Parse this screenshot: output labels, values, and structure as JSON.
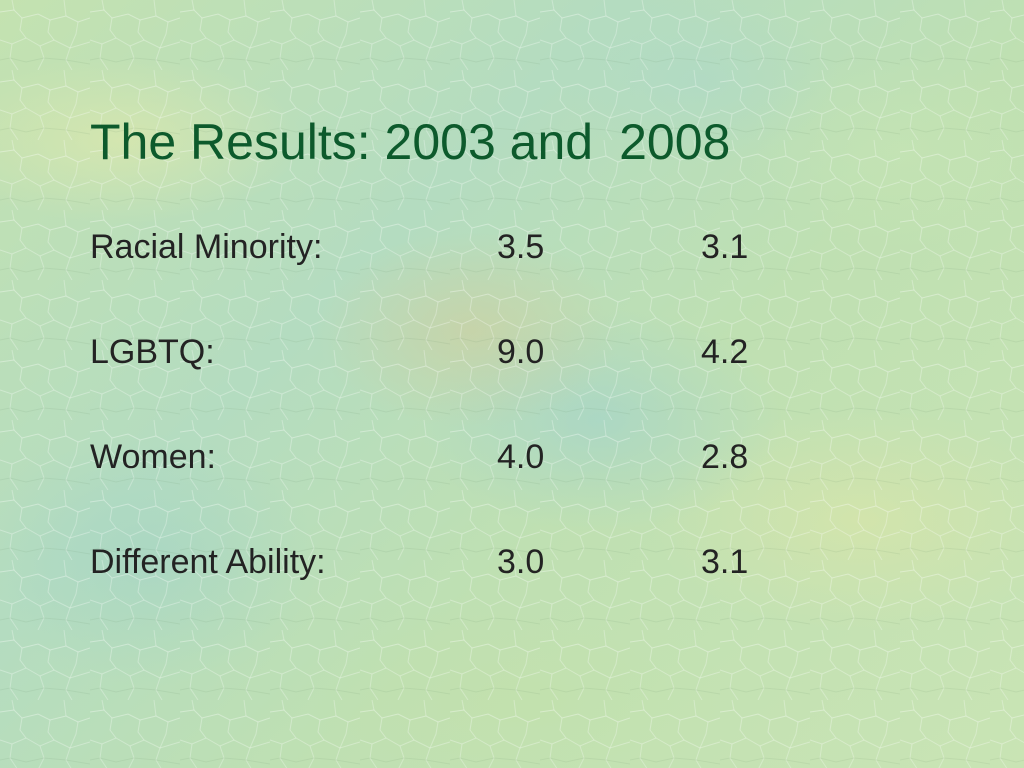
{
  "slide": {
    "title_prefix": "The Results: 2003 and",
    "title_year": "2008",
    "rows": [
      {
        "label": "Racial Minority:",
        "v2003": "3.5",
        "v2008": "3.1"
      },
      {
        "label": "LGBTQ:",
        "v2003": "9.0",
        "v2008": "4.2"
      },
      {
        "label": "Women:",
        "v2003": "4.0",
        "v2008": "2.8"
      },
      {
        "label": "Different Ability:",
        "v2003": "3.0",
        "v2008": "3.1"
      }
    ]
  },
  "colors": {
    "title": "#0d5a2c",
    "body_text": "#232323",
    "background": "#b8dcb0"
  }
}
